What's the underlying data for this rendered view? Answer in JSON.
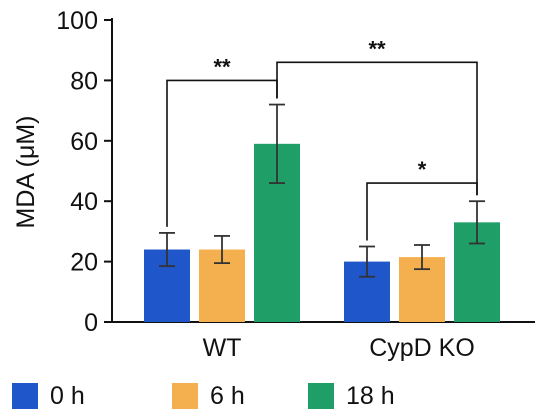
{
  "chart_data": {
    "type": "bar",
    "title": "",
    "xlabel": "",
    "ylabel": "MDA (μM)",
    "ylim": [
      0,
      100
    ],
    "yticks": [
      0,
      20,
      40,
      60,
      80,
      100
    ],
    "categories": [
      "WT",
      "CypD KO"
    ],
    "series": [
      {
        "name": "0 h",
        "color": "#1f56c9",
        "values": [
          24,
          20
        ],
        "errors": [
          5.5,
          5
        ]
      },
      {
        "name": "6 h",
        "color": "#f4b04f",
        "values": [
          24,
          21.5
        ],
        "errors": [
          4.5,
          4
        ]
      },
      {
        "name": "18 h",
        "color": "#1f9e67",
        "values": [
          59,
          33
        ],
        "errors": [
          13,
          7
        ]
      }
    ],
    "legend": "bottom",
    "grid": false,
    "annotations": [
      {
        "label": "**",
        "from": {
          "category": 0,
          "series": 0
        },
        "to": {
          "category": 0,
          "series": 2
        },
        "y": 80
      },
      {
        "label": "**",
        "from": {
          "category": 0,
          "series": 2
        },
        "to": {
          "category": 1,
          "series": 2
        },
        "y": 86
      },
      {
        "label": "*",
        "from": {
          "category": 1,
          "series": 0
        },
        "to": {
          "category": 1,
          "series": 2
        },
        "y": 46
      }
    ]
  }
}
